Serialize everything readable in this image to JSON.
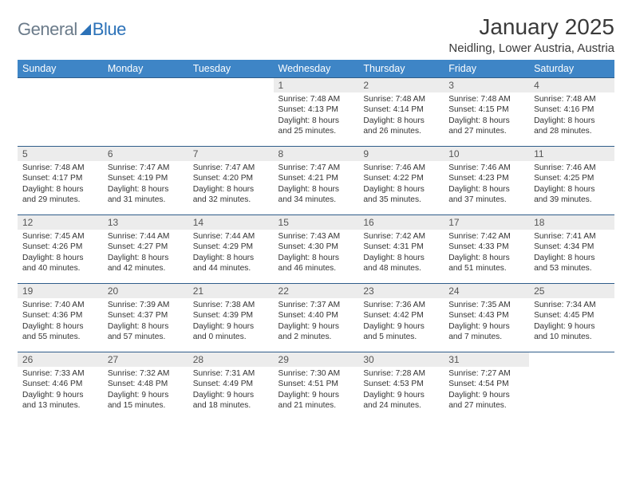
{
  "logo": {
    "part1": "General",
    "part2": "Blue"
  },
  "title": {
    "month": "January 2025",
    "location": "Neidling, Lower Austria, Austria"
  },
  "colors": {
    "header_bg": "#3e85c6",
    "header_text": "#ffffff",
    "row_border": "#2f5d8a",
    "daynum_bg": "#ececec",
    "logo_gray": "#6b7b8a",
    "logo_blue": "#2c72b8",
    "body_text": "#333333"
  },
  "day_names": [
    "Sunday",
    "Monday",
    "Tuesday",
    "Wednesday",
    "Thursday",
    "Friday",
    "Saturday"
  ],
  "weeks": [
    [
      null,
      null,
      null,
      {
        "n": "1",
        "sr": "7:48 AM",
        "ss": "4:13 PM",
        "dh": "8",
        "dm": "25"
      },
      {
        "n": "2",
        "sr": "7:48 AM",
        "ss": "4:14 PM",
        "dh": "8",
        "dm": "26"
      },
      {
        "n": "3",
        "sr": "7:48 AM",
        "ss": "4:15 PM",
        "dh": "8",
        "dm": "27"
      },
      {
        "n": "4",
        "sr": "7:48 AM",
        "ss": "4:16 PM",
        "dh": "8",
        "dm": "28"
      }
    ],
    [
      {
        "n": "5",
        "sr": "7:48 AM",
        "ss": "4:17 PM",
        "dh": "8",
        "dm": "29"
      },
      {
        "n": "6",
        "sr": "7:47 AM",
        "ss": "4:19 PM",
        "dh": "8",
        "dm": "31"
      },
      {
        "n": "7",
        "sr": "7:47 AM",
        "ss": "4:20 PM",
        "dh": "8",
        "dm": "32"
      },
      {
        "n": "8",
        "sr": "7:47 AM",
        "ss": "4:21 PM",
        "dh": "8",
        "dm": "34"
      },
      {
        "n": "9",
        "sr": "7:46 AM",
        "ss": "4:22 PM",
        "dh": "8",
        "dm": "35"
      },
      {
        "n": "10",
        "sr": "7:46 AM",
        "ss": "4:23 PM",
        "dh": "8",
        "dm": "37"
      },
      {
        "n": "11",
        "sr": "7:46 AM",
        "ss": "4:25 PM",
        "dh": "8",
        "dm": "39"
      }
    ],
    [
      {
        "n": "12",
        "sr": "7:45 AM",
        "ss": "4:26 PM",
        "dh": "8",
        "dm": "40"
      },
      {
        "n": "13",
        "sr": "7:44 AM",
        "ss": "4:27 PM",
        "dh": "8",
        "dm": "42"
      },
      {
        "n": "14",
        "sr": "7:44 AM",
        "ss": "4:29 PM",
        "dh": "8",
        "dm": "44"
      },
      {
        "n": "15",
        "sr": "7:43 AM",
        "ss": "4:30 PM",
        "dh": "8",
        "dm": "46"
      },
      {
        "n": "16",
        "sr": "7:42 AM",
        "ss": "4:31 PM",
        "dh": "8",
        "dm": "48"
      },
      {
        "n": "17",
        "sr": "7:42 AM",
        "ss": "4:33 PM",
        "dh": "8",
        "dm": "51"
      },
      {
        "n": "18",
        "sr": "7:41 AM",
        "ss": "4:34 PM",
        "dh": "8",
        "dm": "53"
      }
    ],
    [
      {
        "n": "19",
        "sr": "7:40 AM",
        "ss": "4:36 PM",
        "dh": "8",
        "dm": "55"
      },
      {
        "n": "20",
        "sr": "7:39 AM",
        "ss": "4:37 PM",
        "dh": "8",
        "dm": "57"
      },
      {
        "n": "21",
        "sr": "7:38 AM",
        "ss": "4:39 PM",
        "dh": "9",
        "dm": "0"
      },
      {
        "n": "22",
        "sr": "7:37 AM",
        "ss": "4:40 PM",
        "dh": "9",
        "dm": "2"
      },
      {
        "n": "23",
        "sr": "7:36 AM",
        "ss": "4:42 PM",
        "dh": "9",
        "dm": "5"
      },
      {
        "n": "24",
        "sr": "7:35 AM",
        "ss": "4:43 PM",
        "dh": "9",
        "dm": "7"
      },
      {
        "n": "25",
        "sr": "7:34 AM",
        "ss": "4:45 PM",
        "dh": "9",
        "dm": "10"
      }
    ],
    [
      {
        "n": "26",
        "sr": "7:33 AM",
        "ss": "4:46 PM",
        "dh": "9",
        "dm": "13"
      },
      {
        "n": "27",
        "sr": "7:32 AM",
        "ss": "4:48 PM",
        "dh": "9",
        "dm": "15"
      },
      {
        "n": "28",
        "sr": "7:31 AM",
        "ss": "4:49 PM",
        "dh": "9",
        "dm": "18"
      },
      {
        "n": "29",
        "sr": "7:30 AM",
        "ss": "4:51 PM",
        "dh": "9",
        "dm": "21"
      },
      {
        "n": "30",
        "sr": "7:28 AM",
        "ss": "4:53 PM",
        "dh": "9",
        "dm": "24"
      },
      {
        "n": "31",
        "sr": "7:27 AM",
        "ss": "4:54 PM",
        "dh": "9",
        "dm": "27"
      },
      null
    ]
  ]
}
